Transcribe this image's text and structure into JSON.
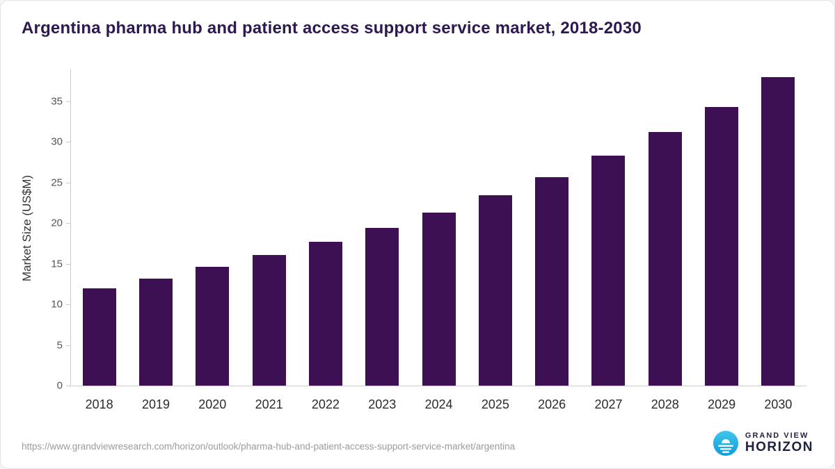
{
  "chart_data": {
    "type": "bar",
    "title": "Argentina pharma hub and patient access support service market, 2018-2030",
    "ylabel": "Market Size (US$M)",
    "xlabel": "",
    "categories": [
      "2018",
      "2019",
      "2020",
      "2021",
      "2022",
      "2023",
      "2024",
      "2025",
      "2026",
      "2027",
      "2028",
      "2029",
      "2030"
    ],
    "values": [
      12.0,
      13.2,
      14.6,
      16.1,
      17.7,
      19.4,
      21.3,
      23.4,
      25.7,
      28.3,
      31.2,
      34.3,
      38.0
    ],
    "yticks": [
      0,
      5,
      10,
      15,
      20,
      25,
      30,
      35
    ],
    "ylim": [
      0,
      39
    ],
    "grid": false,
    "legend": false,
    "bar_color": "#3d1053"
  },
  "footer": {
    "source_url": "https://www.grandviewresearch.com/horizon/outlook/pharma-hub-and-patient-access-support-service-market/argentina",
    "logo": {
      "line1": "GRAND VIEW",
      "line2": "HORIZON",
      "icon_color_top": "#3fc6ee",
      "icon_color_bottom": "#0f9ed8"
    }
  }
}
